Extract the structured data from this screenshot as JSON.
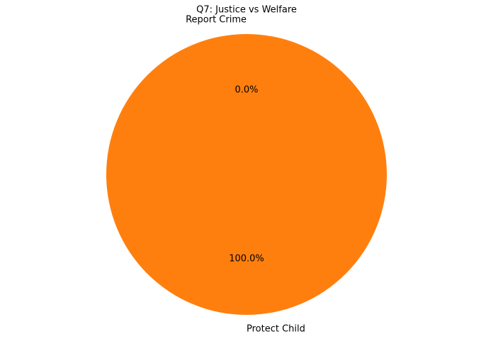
{
  "chart_data": {
    "type": "pie",
    "title": "Q7: Justice vs Welfare",
    "categories": [
      "Report Crime",
      "Protect Child"
    ],
    "values": [
      0,
      100
    ],
    "value_labels": [
      "0.0%",
      "100.0%"
    ],
    "colors": [
      "#1f77b4",
      "#ff7f0e"
    ]
  }
}
